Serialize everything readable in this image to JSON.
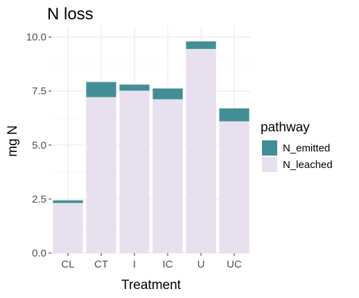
{
  "chart_data": {
    "type": "bar",
    "stacked": true,
    "title": "N loss",
    "xlabel": "Treatment",
    "ylabel": "mg N",
    "categories": [
      "CL",
      "CT",
      "I",
      "IC",
      "U",
      "UC"
    ],
    "series": [
      {
        "name": "N_emitted",
        "values": [
          0.12,
          0.7,
          0.28,
          0.5,
          0.35,
          0.6
        ]
      },
      {
        "name": "N_leached",
        "values": [
          2.32,
          7.22,
          7.52,
          7.12,
          9.45,
          6.1
        ]
      }
    ],
    "ylim": [
      0,
      10.5
    ],
    "yticks": [
      "0.0",
      "2.5",
      "5.0",
      "7.5",
      "10.0"
    ],
    "legend": {
      "title": "pathway",
      "placement": "right"
    },
    "grid": true,
    "colors": {
      "N_emitted": "#438e96",
      "N_leached": "#e8e0ee",
      "panel_bg": "#ffffff",
      "grid_major": "#ebebeb",
      "grid_minor": "#f5f5f5"
    }
  }
}
